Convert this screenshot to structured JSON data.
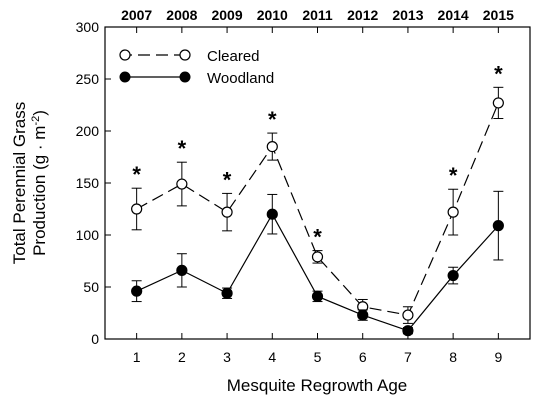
{
  "chart_data": {
    "type": "line",
    "x": [
      1,
      2,
      3,
      4,
      5,
      6,
      7,
      8,
      9
    ],
    "x_tick_labels": [
      "1",
      "2",
      "3",
      "4",
      "5",
      "6",
      "7",
      "8",
      "9"
    ],
    "top_tick_labels": [
      "2007",
      "2008",
      "2009",
      "2010",
      "2011",
      "2012",
      "2013",
      "2014",
      "2015"
    ],
    "xlabel": "Mesquite Regrowth Age",
    "ylabel_line1": "Total Perennial Grass",
    "ylabel_line2_prefix": "Production (g · m",
    "ylabel_line2_exponent": "-2",
    "ylabel_line2_suffix": ")",
    "xlim": [
      0.3,
      9.7
    ],
    "ylim": [
      0,
      300
    ],
    "y_ticks": [
      0,
      50,
      100,
      150,
      200,
      250,
      300
    ],
    "legend_position": "top-left",
    "significance_marker": "*",
    "significant_x": [
      1,
      2,
      3,
      4,
      5,
      8,
      9
    ],
    "series": [
      {
        "name": "Cleared",
        "marker": "open-circle",
        "line_style": "dashed",
        "values": [
          125,
          149,
          122,
          185,
          79,
          31,
          23,
          122,
          227
        ],
        "errors": [
          20,
          21,
          18,
          13,
          6,
          7,
          8,
          22,
          15
        ]
      },
      {
        "name": "Woodland",
        "marker": "filled-circle",
        "line_style": "solid",
        "values": [
          46,
          66,
          44,
          120,
          41,
          23,
          8,
          61,
          109
        ],
        "errors": [
          10,
          16,
          5,
          19,
          5,
          5,
          3,
          8,
          33
        ]
      }
    ]
  }
}
